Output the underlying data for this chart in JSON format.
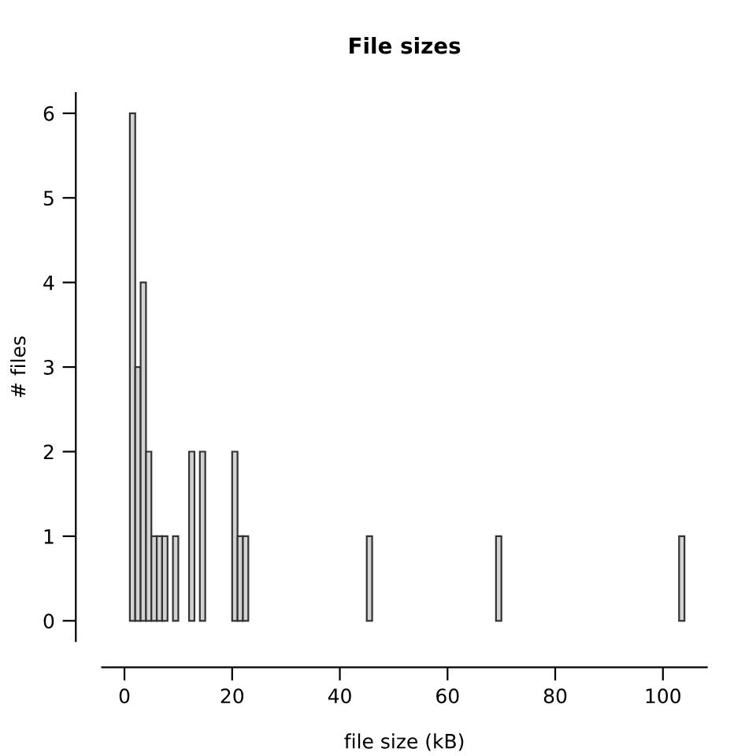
{
  "chart_data": {
    "type": "histogram",
    "title": "File sizes",
    "xlabel": "file size (kB)",
    "ylabel": "# files",
    "bins": [
      0,
      1,
      2,
      3,
      4,
      5,
      6,
      7,
      8,
      9,
      10,
      11,
      12,
      13,
      14,
      15,
      16,
      17,
      18,
      19,
      20,
      21,
      22,
      23,
      24,
      25,
      26,
      27,
      28,
      29,
      30,
      31,
      32,
      33,
      34,
      35,
      36,
      37,
      38,
      39,
      40,
      41,
      42,
      43,
      44,
      45,
      46,
      47,
      48,
      49,
      50,
      51,
      52,
      53,
      54,
      55,
      56,
      57,
      58,
      59,
      60,
      61,
      62,
      63,
      64,
      65,
      66,
      67,
      68,
      69,
      70,
      71,
      72,
      73,
      74,
      75,
      76,
      77,
      78,
      79,
      80,
      81,
      82,
      83,
      84,
      85,
      86,
      87,
      88,
      89,
      90,
      91,
      92,
      93,
      94,
      95,
      96,
      97,
      98,
      99,
      100,
      101,
      102,
      103,
      104
    ],
    "values": [
      0,
      6,
      3,
      4,
      2,
      1,
      1,
      1,
      0,
      1,
      0,
      0,
      2,
      0,
      2,
      0,
      0,
      0,
      0,
      0,
      2,
      1,
      1,
      0,
      0,
      0,
      0,
      0,
      0,
      0,
      0,
      0,
      0,
      0,
      0,
      0,
      0,
      0,
      0,
      0,
      0,
      0,
      0,
      0,
      0,
      1,
      0,
      0,
      0,
      0,
      0,
      0,
      0,
      0,
      0,
      0,
      0,
      0,
      0,
      0,
      0,
      0,
      0,
      0,
      0,
      0,
      0,
      0,
      0,
      1,
      0,
      0,
      0,
      0,
      0,
      0,
      0,
      0,
      0,
      0,
      0,
      0,
      0,
      0,
      0,
      0,
      0,
      0,
      0,
      0,
      0,
      0,
      0,
      0,
      0,
      0,
      0,
      0,
      0,
      0,
      0,
      0,
      0,
      1
    ],
    "color": "#d3d3d3",
    "xlim": [
      -4.16,
      108.16
    ],
    "ylim": [
      -0.24,
      6.24
    ],
    "xticks": [
      0,
      20,
      40,
      60,
      80,
      100
    ],
    "yticks": [
      0,
      1,
      2,
      3,
      4,
      5,
      6
    ],
    "grid": false
  }
}
